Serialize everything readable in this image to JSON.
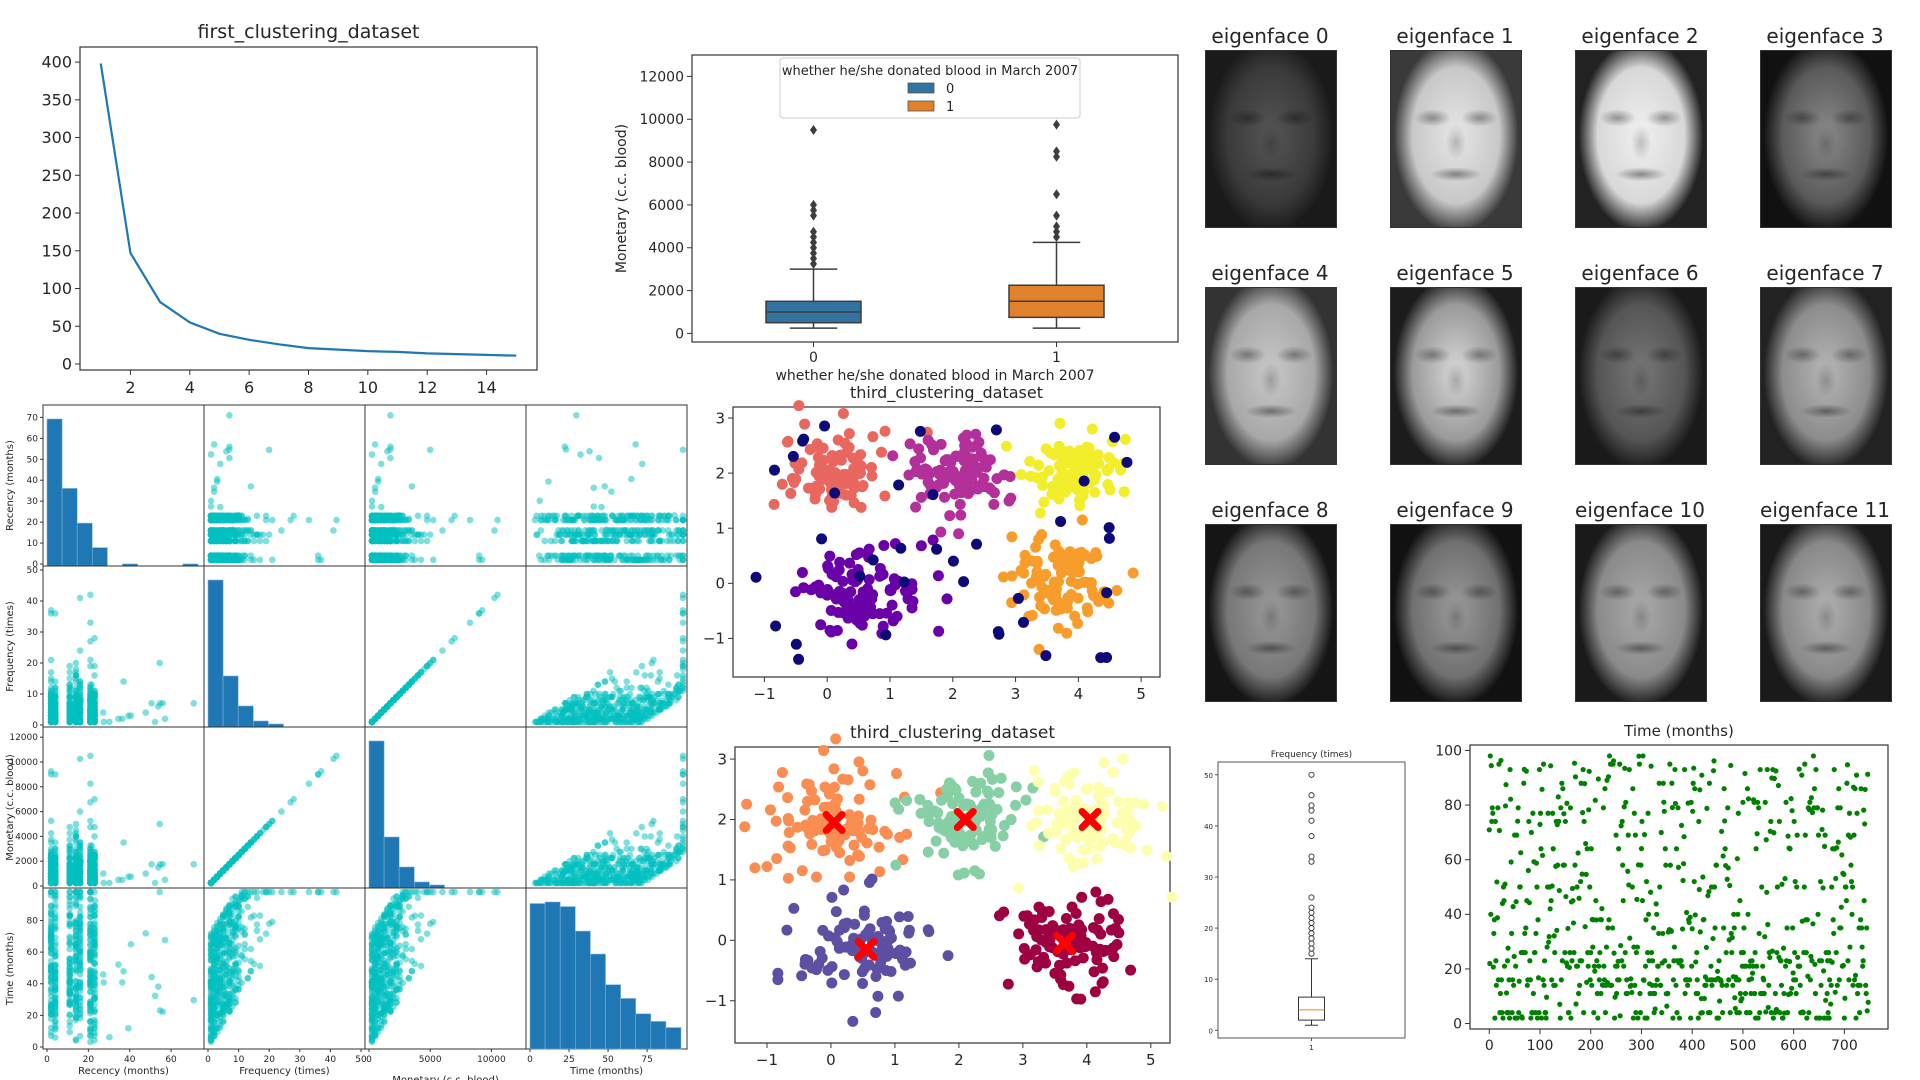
{
  "chart_data": [
    {
      "id": "elbow",
      "type": "line",
      "title": "first_clustering_dataset",
      "xlabel": "",
      "ylabel": "",
      "x": [
        1,
        2,
        3,
        4,
        5,
        6,
        7,
        8,
        9,
        10,
        11,
        12,
        13,
        14,
        15
      ],
      "values": [
        398,
        147,
        82,
        55,
        40,
        32,
        26,
        21,
        19,
        17,
        16,
        14,
        13,
        12,
        11
      ],
      "xlim": [
        0.3,
        15.7
      ],
      "ylim": [
        -8,
        420
      ],
      "xticks": [
        2,
        4,
        6,
        8,
        10,
        12,
        14
      ],
      "yticks": [
        0,
        50,
        100,
        150,
        200,
        250,
        300,
        350,
        400
      ],
      "color": "#1f77b4"
    },
    {
      "id": "monetary-boxplot",
      "type": "boxplot",
      "title": "",
      "xlabel": "whether he/she donated blood in March 2007",
      "ylabel": "Monetary (c.c. blood)",
      "categories": [
        "0",
        "1"
      ],
      "ylim": [
        -400,
        13000
      ],
      "yticks": [
        0,
        2000,
        4000,
        6000,
        8000,
        10000,
        12000
      ],
      "legend": {
        "title": "whether he/she donated blood in March 2007",
        "entries": [
          "0",
          "1"
        ],
        "placement": "upper-center"
      },
      "series": [
        {
          "name": "0",
          "color": "#3274a1",
          "q1": 500,
          "median": 1000,
          "q3": 1500,
          "whisker_low": 250,
          "whisker_high": 3000,
          "outliers": [
            3250,
            3500,
            3750,
            4000,
            4250,
            4500,
            4750,
            5500,
            5750,
            6000,
            9500,
            11000
          ]
        },
        {
          "name": "1",
          "color": "#e1812c",
          "q1": 750,
          "median": 1500,
          "q3": 2250,
          "whisker_low": 250,
          "whisker_high": 4250,
          "outliers": [
            4500,
            4750,
            5000,
            5500,
            6500,
            8250,
            8500,
            9750,
            10250,
            10500,
            11500,
            12500
          ]
        }
      ]
    },
    {
      "id": "scatter-matrix",
      "type": "scatter",
      "title": "",
      "variables": [
        "Recency (months)",
        "Frequency (times)",
        "Monetary (c.c. blood)",
        "Time (months)"
      ],
      "ranges": [
        [
          0,
          74
        ],
        [
          0,
          50
        ],
        [
          0,
          12500
        ],
        [
          0,
          98
        ]
      ],
      "ticks": [
        [
          0,
          20,
          40,
          60
        ],
        [
          0,
          10,
          20,
          30,
          40,
          50
        ],
        [
          0,
          5000,
          10000
        ],
        [
          0,
          25,
          50,
          75,
          100
        ]
      ],
      "row_ticks": [
        [
          0,
          10,
          20,
          30,
          40,
          50,
          60,
          70
        ],
        [
          0,
          10,
          20,
          30,
          40,
          50
        ],
        [
          0,
          2000,
          4000,
          6000,
          8000,
          10000,
          12000
        ],
        [
          0,
          20,
          40,
          60,
          80,
          100
        ]
      ],
      "histograms": [
        {
          "var": "Recency (months)",
          "counts": [
            72,
            38,
            21,
            9,
            0,
            1,
            0,
            0,
            0,
            1
          ]
        },
        {
          "var": "Frequency (times)",
          "counts": [
            49,
            17,
            7,
            2,
            1,
            0,
            0,
            0,
            0,
            0
          ]
        },
        {
          "var": "Monetary (c.c. blood)",
          "counts": [
            49,
            17,
            7,
            2,
            1,
            0,
            0,
            0,
            0,
            0
          ]
        },
        {
          "var": "Time (months)",
          "counts": [
            95,
            96,
            93,
            77,
            62,
            42,
            33,
            23,
            18,
            14
          ]
        }
      ],
      "color": "#00bfbf",
      "hist_color": "#1f77b4"
    },
    {
      "id": "clusters-dbscan",
      "type": "scatter",
      "title": "third_clustering_dataset",
      "xlim": [
        -1.5,
        5.3
      ],
      "ylim": [
        -1.7,
        3.2
      ],
      "xticks": [
        -1,
        0,
        1,
        2,
        3,
        4,
        5
      ],
      "yticks": [
        -1,
        0,
        1,
        2,
        3
      ],
      "clusters": [
        {
          "name": "cluster-0",
          "color": "#e8675e",
          "center": [
            0.05,
            2.0
          ],
          "spread": 0.45
        },
        {
          "name": "cluster-1",
          "color": "#b3309a",
          "center": [
            2.1,
            2.05
          ],
          "spread": 0.4
        },
        {
          "name": "cluster-2",
          "color": "#f3ee2c",
          "center": [
            4.0,
            2.0
          ],
          "spread": 0.4
        },
        {
          "name": "cluster-3",
          "color": "#6a00a8",
          "center": [
            0.5,
            -0.2
          ],
          "spread": 0.5
        },
        {
          "name": "cluster-4",
          "color": "#f89d2c",
          "center": [
            3.7,
            0.0
          ],
          "spread": 0.45
        },
        {
          "name": "noise",
          "color": "#0d0a78",
          "center": [
            2.0,
            1.0
          ],
          "spread": 2.0
        }
      ]
    },
    {
      "id": "clusters-kmeans",
      "type": "scatter",
      "title": "third_clustering_dataset",
      "xlim": [
        -1.5,
        5.3
      ],
      "ylim": [
        -1.7,
        3.2
      ],
      "xticks": [
        -1,
        0,
        1,
        2,
        3,
        4,
        5
      ],
      "yticks": [
        -1,
        0,
        1,
        2,
        3
      ],
      "clusters": [
        {
          "name": "cluster-0",
          "color": "#f98d52",
          "center": [
            0.05,
            1.95
          ],
          "spread": 0.5
        },
        {
          "name": "cluster-1",
          "color": "#87cfa4",
          "center": [
            2.1,
            2.0
          ],
          "spread": 0.45
        },
        {
          "name": "cluster-2",
          "color": "#fefeaf",
          "center": [
            4.05,
            2.0
          ],
          "spread": 0.5
        },
        {
          "name": "cluster-3",
          "color": "#5e4fa2",
          "center": [
            0.55,
            -0.15
          ],
          "spread": 0.5
        },
        {
          "name": "cluster-4",
          "color": "#9e0142",
          "center": [
            3.65,
            -0.05
          ],
          "spread": 0.45
        }
      ],
      "centroids": [
        [
          0.05,
          1.95
        ],
        [
          2.1,
          2.0
        ],
        [
          4.05,
          2.0
        ],
        [
          0.55,
          -0.15
        ],
        [
          3.65,
          -0.05
        ]
      ],
      "centroid_color": "#ff0000"
    },
    {
      "id": "frequency-boxplot",
      "type": "boxplot",
      "title": "Frequency (times)",
      "categories": [
        "1"
      ],
      "ylim": [
        -1.5,
        52.5
      ],
      "yticks": [
        0,
        10,
        20,
        30,
        40,
        50
      ],
      "series": [
        {
          "name": "1",
          "q1": 2,
          "median": 4,
          "q3": 6.5,
          "whisker_low": 1,
          "whisker_high": 14,
          "outliers": [
            15,
            16,
            17,
            18,
            19,
            20,
            21,
            22,
            23,
            24,
            26,
            33,
            34,
            38,
            41,
            43,
            44,
            46,
            50
          ]
        }
      ]
    },
    {
      "id": "time-scatter",
      "type": "scatter",
      "title": "Time (months)",
      "xlim": [
        -38,
        786
      ],
      "ylim": [
        -2,
        102
      ],
      "xticks": [
        0,
        100,
        200,
        300,
        400,
        500,
        600,
        700
      ],
      "yticks": [
        0,
        20,
        40,
        60,
        80,
        100
      ],
      "n_points": 748,
      "color": "#008000"
    }
  ],
  "eigenfaces": {
    "titles": [
      "eigenface 0",
      "eigenface 1",
      "eigenface 2",
      "eigenface 3",
      "eigenface 4",
      "eigenface 5",
      "eigenface 6",
      "eigenface 7",
      "eigenface 8",
      "eigenface 9",
      "eigenface 10",
      "eigenface 11"
    ],
    "tones": [
      {
        "base": "#3a3a3a",
        "center": "#555555",
        "edge": "#1a1a1a"
      },
      {
        "base": "#c8c8c8",
        "center": "#e6e6e6",
        "edge": "#3a3a3a"
      },
      {
        "base": "#d8d8d8",
        "center": "#f0f0f0",
        "edge": "#222222"
      },
      {
        "base": "#5a5a5a",
        "center": "#8a8a8a",
        "edge": "#111111"
      },
      {
        "base": "#a8a8a8",
        "center": "#c8c8c8",
        "edge": "#333333"
      },
      {
        "base": "#9a9a9a",
        "center": "#d8d8d8",
        "edge": "#1c1c1c"
      },
      {
        "base": "#555555",
        "center": "#777777",
        "edge": "#1a1a1a"
      },
      {
        "base": "#8c8c8c",
        "center": "#b6b6b6",
        "edge": "#222222"
      },
      {
        "base": "#777777",
        "center": "#999999",
        "edge": "#151515"
      },
      {
        "base": "#707070",
        "center": "#9a9a9a",
        "edge": "#111111"
      },
      {
        "base": "#8a8a8a",
        "center": "#aaaaaa",
        "edge": "#1a1a1a"
      },
      {
        "base": "#888888",
        "center": "#b0b0b0",
        "edge": "#1a1a1a"
      }
    ]
  }
}
